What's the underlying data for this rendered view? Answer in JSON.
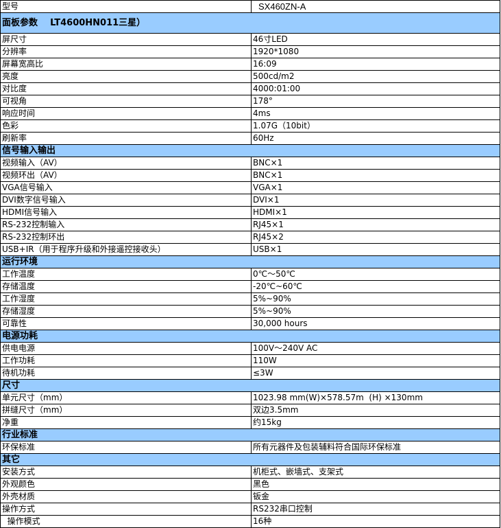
{
  "model": {
    "label": "型号",
    "value": "SX460ZN-A"
  },
  "sections": [
    {
      "title": "面板参数    LT4600HN011三星）",
      "rows": [
        [
          "屏尺寸",
          "46寸LED"
        ],
        [
          "分辨率",
          "1920*1080"
        ],
        [
          "屏幕宽高比",
          "16:09"
        ],
        [
          "亮度",
          "500cd/m2"
        ],
        [
          "对比度",
          "4000:01:00"
        ],
        [
          "可视角",
          "178°"
        ],
        [
          "响应时间",
          "4ms"
        ],
        [
          "色彩",
          "1.07G（10bit）"
        ],
        [
          "刷新率",
          "60Hz"
        ]
      ]
    },
    {
      "title": "信号输入输出",
      "rows": [
        [
          "视频输入（AV）",
          "BNC×1"
        ],
        [
          "视频环出（AV）",
          "BNC×1"
        ],
        [
          "VGA信号输入",
          "VGA×1"
        ],
        [
          "DVI数字信号输入",
          "DVI×1"
        ],
        [
          "HDMI信号输入",
          "HDMI×1"
        ],
        [
          "RS-232控制输入",
          "RJ45×1"
        ],
        [
          "RS-232控制环出",
          "RJ45×2"
        ],
        [
          "USB+IR（用于程序升级和外接遥控接收头）",
          "USB×1"
        ]
      ]
    },
    {
      "title": "运行环境",
      "rows": [
        [
          "工作温度",
          "0℃～50℃"
        ],
        [
          "存储温度",
          "-20℃~60℃"
        ],
        [
          "工作湿度",
          "5%~90%"
        ],
        [
          "存储湿度",
          "5%~90%"
        ],
        [
          "可靠性",
          "30,000 hours"
        ]
      ]
    },
    {
      "title": "电源功耗",
      "rows": [
        [
          "供电电源",
          "100V～240V AC"
        ],
        [
          "工作功耗",
          "110W"
        ],
        [
          "待机功耗",
          "≤3W"
        ]
      ]
    },
    {
      "title": "尺寸",
      "rows": [
        [
          "单元尺寸（mm）",
          "1023.98 mm(W)×578.57m  (H) ×130mm"
        ],
        [
          "拼缝尺寸（mm）",
          "双边3.5mm"
        ],
        [
          "净重",
          "约15kg"
        ]
      ]
    },
    {
      "title": "行业标准",
      "rows": [
        [
          "环保标准",
          "所有元器件及包装辅料符合国际环保标准"
        ]
      ]
    },
    {
      "title": "其它",
      "rows": [
        [
          "安装方式",
          "机柜式、嵌墙式、支架式"
        ],
        [
          "外观颜色",
          "黑色"
        ],
        [
          "外壳材质",
          "钣金"
        ],
        [
          "操作方式",
          "RS232串口控制"
        ],
        [
          "  操作模式",
          "16种"
        ]
      ]
    }
  ],
  "colors": {
    "section_bg": "#99ccff"
  }
}
